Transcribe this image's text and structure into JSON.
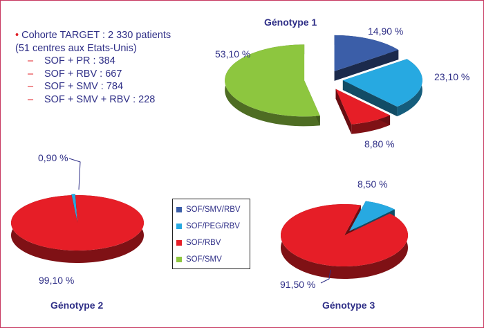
{
  "colors": {
    "SOF/SMV/RBV": "#3b5ea8",
    "SOF/PEG/RBV": "#27a9e1",
    "SOF/RBV": "#e61e27",
    "SOF/SMV": "#8dc63f"
  },
  "info": {
    "cohort": "Cohorte TARGET  : 2 330 patients",
    "centres": "(51 centres aux Etats-Unis)",
    "arms": [
      {
        "label": "SOF + PR : 384"
      },
      {
        "label": "SOF + RBV : 667"
      },
      {
        "label": "SOF + SMV : 784"
      },
      {
        "label": "SOF + SMV + RBV : 228"
      }
    ]
  },
  "legend": [
    {
      "label": "SOF/SMV/RBV",
      "color": "#3b5ea8"
    },
    {
      "label": "SOF/PEG/RBV",
      "color": "#27a9e1"
    },
    {
      "label": "SOF/RBV",
      "color": "#e61e27"
    },
    {
      "label": "SOF/SMV",
      "color": "#8dc63f"
    }
  ],
  "chart_data": [
    {
      "type": "pie",
      "title": "Génotype 1",
      "slices": [
        {
          "category": "SOF/SMV/RBV",
          "value": 14.9,
          "label": "14,90 %"
        },
        {
          "category": "SOF/PEG/RBV",
          "value": 23.1,
          "label": "23,10 %"
        },
        {
          "category": "SOF/RBV",
          "value": 8.8,
          "label": "8,80 %"
        },
        {
          "category": "SOF/SMV",
          "value": 53.1,
          "label": "53,10 %"
        }
      ]
    },
    {
      "type": "pie",
      "title": "Génotype 2",
      "slices": [
        {
          "category": "SOF/PEG/RBV",
          "value": 0.9,
          "label": "0,90 %"
        },
        {
          "category": "SOF/RBV",
          "value": 99.1,
          "label": "99,10 %"
        }
      ]
    },
    {
      "type": "pie",
      "title": "Génotype 3",
      "slices": [
        {
          "category": "SOF/PEG/RBV",
          "value": 8.5,
          "label": "8,50 %"
        },
        {
          "category": "SOF/RBV",
          "value": 91.5,
          "label": "91,50 %"
        }
      ]
    }
  ]
}
